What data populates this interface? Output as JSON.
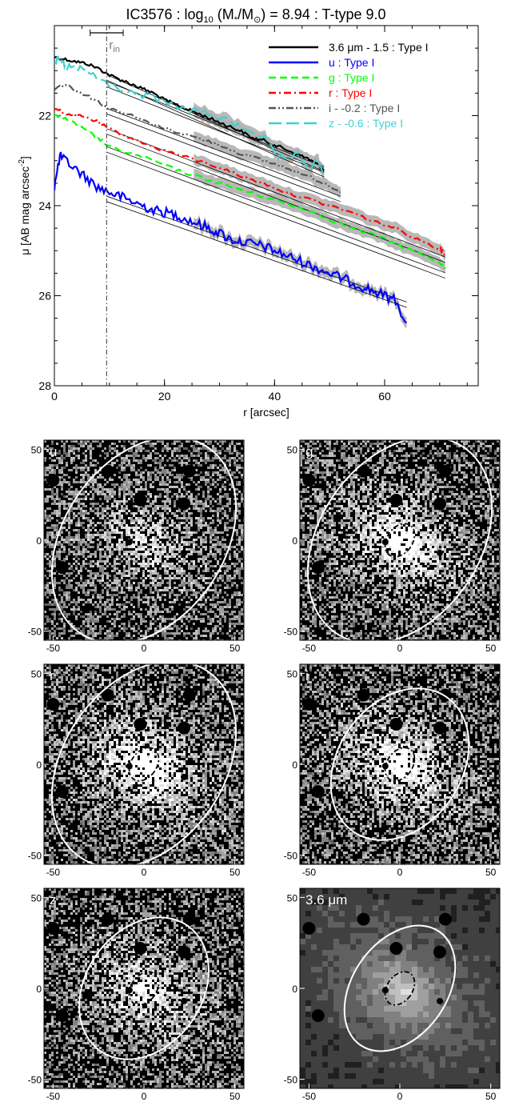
{
  "chart_data": [
    {
      "type": "line",
      "title": "IC3576 : log",
      "title_parts": {
        "prefix": "IC3576 : log",
        "sub10": "10",
        "mid": " (M",
        "star": "*",
        "slash": "/M",
        "sun": "⊙",
        "suffix": ") = 8.94 : T-type 9.0"
      },
      "xlabel": "r [arcsec]",
      "ylabel_parts": {
        "main": "μ [AB mag arcsec",
        "sup": "-2",
        "end": "]"
      },
      "xlim": [
        0,
        77
      ],
      "ylim": [
        28,
        20
      ],
      "y_inverted": true,
      "xticks": [
        0,
        20,
        40,
        60
      ],
      "yticks": [
        22,
        24,
        26,
        28
      ],
      "r_in": 9.5,
      "r_in_label": "r",
      "r_in_sub": "in",
      "r_in_errorbar": [
        6.5,
        12.5
      ],
      "legend_position": "top-right",
      "series": [
        {
          "name": "3.6 μm - 1.5 : Type I",
          "color": "#000000",
          "dash": "solid",
          "x": [
            0,
            2,
            4,
            6,
            8,
            10,
            12,
            14,
            16,
            18,
            20,
            22,
            24,
            26,
            28,
            30,
            32,
            34,
            36,
            38,
            40,
            42,
            44,
            46,
            48,
            49
          ],
          "y": [
            20.7,
            20.75,
            20.8,
            20.85,
            20.95,
            21.1,
            21.2,
            21.3,
            21.4,
            21.5,
            21.65,
            21.75,
            21.85,
            21.95,
            22.05,
            22.15,
            22.25,
            22.35,
            22.5,
            22.55,
            22.65,
            22.75,
            22.85,
            22.95,
            23.1,
            23.2
          ],
          "fit": [
            [
              9.5,
              21.15
            ],
            [
              49,
              23.3
            ]
          ]
        },
        {
          "name": "u : Type I",
          "color": "#0000ff",
          "dash": "solid",
          "x": [
            0,
            1,
            2,
            4,
            6,
            8,
            10,
            12,
            14,
            16,
            18,
            20,
            22,
            24,
            26,
            28,
            30,
            32,
            34,
            36,
            38,
            40,
            42,
            44,
            46,
            48,
            50,
            52,
            54,
            56,
            58,
            60,
            62,
            64
          ],
          "y": [
            23.6,
            22.9,
            23.0,
            23.2,
            23.4,
            23.6,
            23.7,
            23.8,
            23.9,
            24.0,
            24.1,
            24.15,
            24.2,
            24.3,
            24.4,
            24.5,
            24.6,
            24.75,
            24.8,
            24.85,
            24.9,
            25.0,
            25.1,
            25.2,
            25.3,
            25.4,
            25.5,
            25.6,
            25.7,
            25.8,
            25.9,
            26.0,
            26.1,
            26.6
          ],
          "fit": [
            [
              9.5,
              23.85
            ],
            [
              64,
              26.2
            ]
          ]
        },
        {
          "name": "g : Type I",
          "color": "#00ff00",
          "dash": "dashed",
          "x": [
            0,
            2,
            4,
            6,
            8,
            10,
            14,
            18,
            22,
            26,
            30,
            34,
            38,
            42,
            46,
            50,
            54,
            58,
            62,
            66,
            70,
            71
          ],
          "y": [
            22.0,
            22.05,
            22.2,
            22.35,
            22.5,
            22.7,
            22.85,
            23.0,
            23.2,
            23.35,
            23.5,
            23.65,
            23.8,
            23.95,
            24.1,
            24.3,
            24.5,
            24.65,
            24.85,
            25.05,
            25.25,
            25.4
          ],
          "fit": [
            [
              9.5,
              22.75
            ],
            [
              71,
              25.55
            ]
          ]
        },
        {
          "name": "r : Type I",
          "color": "#ff0000",
          "dash": "dashdot",
          "x": [
            0,
            2,
            4,
            6,
            8,
            10,
            14,
            18,
            22,
            26,
            30,
            34,
            38,
            42,
            46,
            50,
            54,
            58,
            62,
            66,
            70,
            71
          ],
          "y": [
            21.85,
            21.95,
            22.0,
            22.05,
            22.15,
            22.3,
            22.5,
            22.7,
            22.85,
            23.0,
            23.15,
            23.35,
            23.5,
            23.7,
            23.85,
            24.0,
            24.15,
            24.35,
            24.5,
            24.75,
            24.95,
            25.1
          ],
          "fit": [
            [
              9.5,
              22.35
            ],
            [
              71,
              25.2
            ]
          ]
        },
        {
          "name": "i - -0.2 : Type I",
          "color": "#555555",
          "dash": "dashdotdot",
          "x": [
            0,
            2,
            4,
            6,
            8,
            10,
            14,
            18,
            22,
            26,
            30,
            34,
            38,
            42,
            46,
            50,
            52
          ],
          "y": [
            21.4,
            21.3,
            21.45,
            21.55,
            21.7,
            21.85,
            22.0,
            22.2,
            22.35,
            22.5,
            22.65,
            22.85,
            23.0,
            23.15,
            23.35,
            23.55,
            23.7
          ],
          "fit": [
            [
              9.5,
              21.9
            ],
            [
              52,
              23.85
            ]
          ]
        },
        {
          "name": "z - -0.6 : Type I",
          "color": "#40d0d0",
          "dash": "longdash",
          "x": [
            0,
            1,
            2,
            4,
            6,
            8,
            10,
            14,
            18,
            22,
            26,
            30,
            34,
            38,
            40,
            42,
            44,
            46,
            48,
            49
          ],
          "y": [
            20.8,
            20.75,
            20.9,
            20.95,
            21.0,
            21.2,
            21.3,
            21.5,
            21.6,
            21.8,
            21.9,
            22.05,
            22.25,
            22.45,
            22.85,
            23.0,
            22.8,
            23.2,
            23.0,
            23.4
          ],
          "fit": [
            [
              9.5,
              21.3
            ],
            [
              49,
              23.2
            ]
          ]
        }
      ]
    },
    {
      "type": "image_panels",
      "axis_ticks": [
        -50,
        0,
        50
      ],
      "axis_range": [
        -55,
        55
      ],
      "panels": [
        {
          "label": "u",
          "ellipse_a": 62,
          "ellipse_b": 44,
          "ellipse_pa": -35,
          "inner": false,
          "brightness": 0.35
        },
        {
          "label": "g",
          "ellipse_a": 62,
          "ellipse_b": 44,
          "ellipse_pa": -35,
          "inner": true,
          "brightness": 0.55
        },
        {
          "label": "r",
          "ellipse_a": 62,
          "ellipse_b": 44,
          "ellipse_pa": -35,
          "inner": true,
          "brightness": 0.6
        },
        {
          "label": "i",
          "ellipse_a": 45,
          "ellipse_b": 34,
          "ellipse_pa": -35,
          "inner": true,
          "brightness": 0.55
        },
        {
          "label": "z",
          "ellipse_a": 42,
          "ellipse_b": 32,
          "ellipse_pa": -35,
          "inner": true,
          "brightness": 0.45
        },
        {
          "label": "3.6 μm",
          "ellipse_a": 38,
          "ellipse_b": 26,
          "ellipse_pa": -35,
          "inner": true,
          "brightness": 0.5,
          "ir": true
        }
      ]
    }
  ],
  "colors": {
    "axis": "#000000",
    "fit_line": "#000000",
    "error_band": "#b0b0b0",
    "ellipse": "#ffffff"
  }
}
